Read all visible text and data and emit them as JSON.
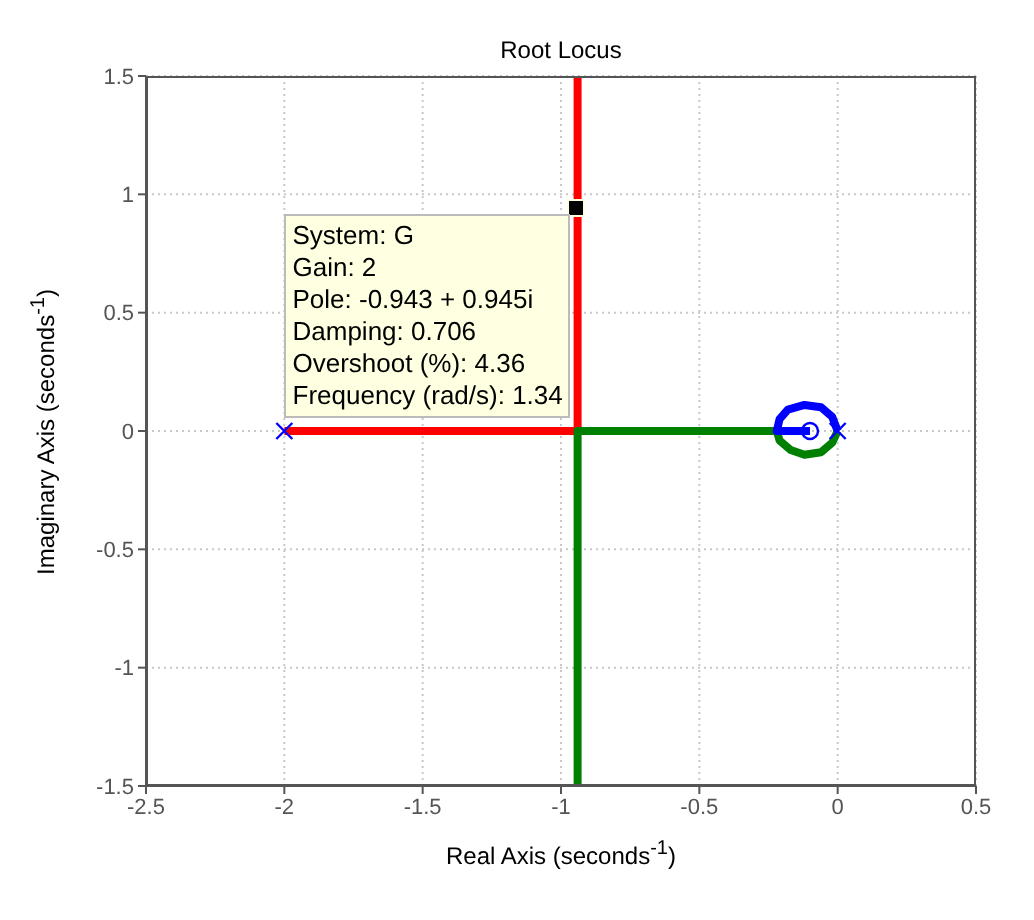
{
  "chart_data": {
    "type": "line",
    "title": "Root Locus",
    "xlabel": "Real Axis (seconds$^{-1}$)",
    "ylabel": "Imaginary Axis (seconds$^{-1}$)",
    "xlim": [
      -2.5,
      0.5
    ],
    "xticks": [
      -2.5,
      -2,
      -1.5,
      -1,
      -0.5,
      0,
      0.5
    ],
    "ylim": [
      -1.5,
      1.5
    ],
    "yticks": [
      -1.5,
      -1,
      -0.5,
      0,
      0.5,
      1,
      1.5
    ],
    "grid": true,
    "series": [
      {
        "type": "line",
        "color": "#ff0000",
        "x": [
          -2,
          -0.94,
          -0.94
        ],
        "values": [
          0,
          0,
          1.5
        ]
      },
      {
        "type": "line",
        "color": "#008000",
        "x": [
          0,
          -0.02,
          -0.06,
          -0.12,
          -0.17,
          -0.21,
          -0.22,
          -0.94,
          -0.94
        ],
        "values": [
          0,
          -0.05,
          -0.09,
          -0.1,
          -0.08,
          -0.04,
          0,
          0,
          -1.5
        ]
      },
      {
        "type": "line",
        "color": "#0000ff",
        "x": [
          0,
          -0.02,
          -0.06,
          -0.12,
          -0.18,
          -0.21,
          -0.22,
          -0.1
        ],
        "values": [
          0,
          0.06,
          0.1,
          0.11,
          0.09,
          0.05,
          0,
          0
        ]
      },
      {
        "type": "scatter",
        "color": "#0000ff",
        "marker": "cross",
        "x": [
          -2,
          0
        ],
        "values": [
          0,
          0
        ]
      },
      {
        "type": "scatter",
        "color": "#0000ff",
        "marker": "circle",
        "x": [
          -0.1
        ],
        "values": [
          0
        ]
      }
    ],
    "annotations": [
      {
        "text": "System: G\nGain: 2\nPole: -0.943 + 0.945i\nDamping: 0.706\nOvershoot (%): 4.36\nFrequency (rad/s): 1.34",
        "x": -0.943,
        "y": 0.945
      }
    ]
  }
}
